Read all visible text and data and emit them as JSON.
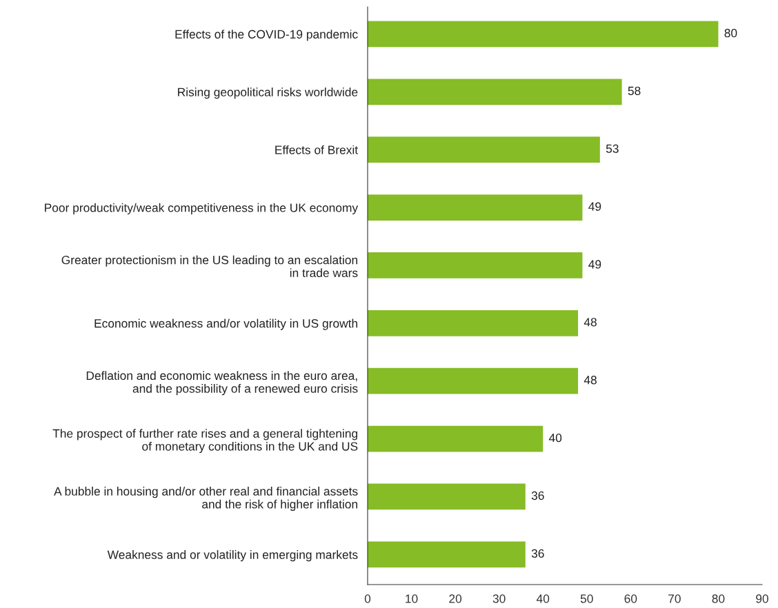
{
  "chart_data": {
    "type": "bar",
    "orientation": "horizontal",
    "categories": [
      "Effects of the COVID-19 pandemic",
      "Rising geopolitical risks worldwide",
      "Effects of Brexit",
      "Poor productivity/weak competitiveness in the UK economy",
      "Greater protectionism in the US leading to an escalation\nin trade wars",
      "Economic weakness and/or volatility in US growth",
      "Deflation and economic weakness in the euro area,\nand the possibility of a renewed euro crisis",
      "The prospect of further rate rises and a general tightening\nof monetary conditions in the UK and US",
      "A bubble in housing and/or other real and financial assets\nand the risk of higher inflation",
      "Weakness and or volatility in emerging markets"
    ],
    "values": [
      80,
      58,
      53,
      49,
      49,
      48,
      48,
      40,
      36,
      36
    ],
    "color": "#86bc25",
    "xlim": [
      0,
      90
    ],
    "xticks": [
      0,
      10,
      20,
      30,
      40,
      50,
      60,
      70,
      80,
      90
    ],
    "data_labels": true,
    "grid": false,
    "legend": false
  }
}
